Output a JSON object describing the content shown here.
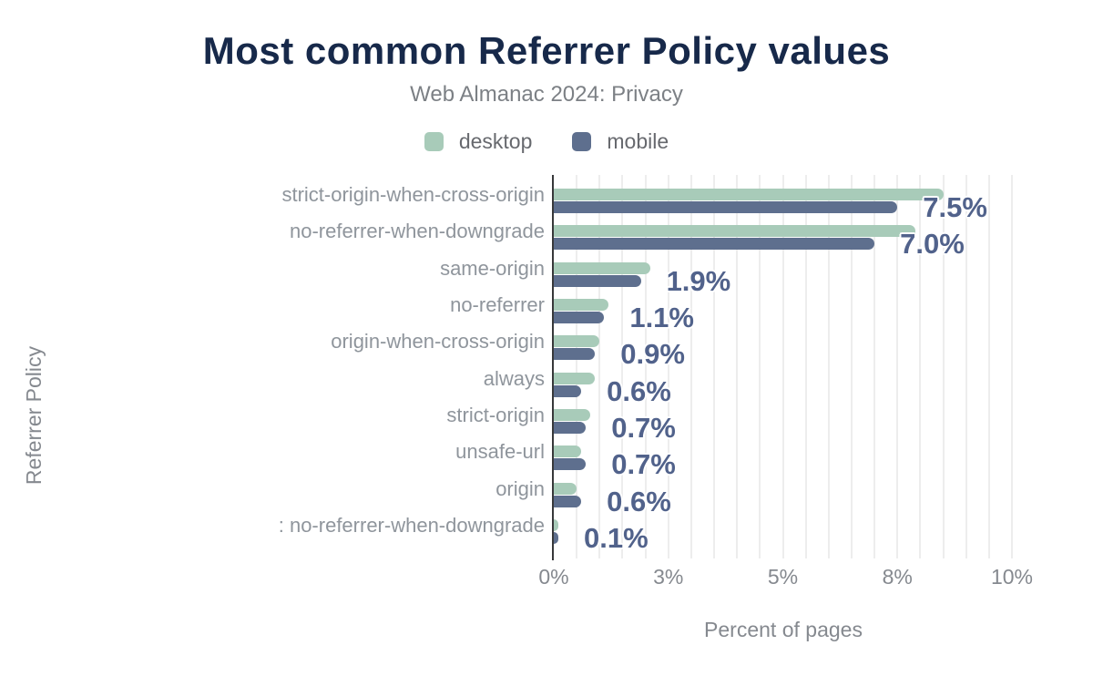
{
  "title": "Most common Referrer Policy values",
  "subtitle": "Web Almanac 2024: Privacy",
  "legend": {
    "items": [
      {
        "label": "desktop",
        "color": "#a8cbb9"
      },
      {
        "label": "mobile",
        "color": "#5e6f8e"
      }
    ]
  },
  "x_axis": {
    "title": "Percent of pages",
    "ticks": [
      {
        "label": "0%",
        "value": 0
      },
      {
        "label": "3%",
        "value": 2.5
      },
      {
        "label": "5%",
        "value": 5
      },
      {
        "label": "8%",
        "value": 7.5
      },
      {
        "label": "10%",
        "value": 10
      }
    ]
  },
  "y_axis": {
    "title": "Referrer Policy"
  },
  "chart_data": {
    "type": "bar",
    "orientation": "horizontal",
    "title": "Most common Referrer Policy values",
    "subtitle": "Web Almanac 2024: Privacy",
    "xlabel": "Percent of pages",
    "ylabel": "Referrer Policy",
    "xlim": [
      0,
      10
    ],
    "grid_step": 0.5,
    "grid": true,
    "legend_position": "top",
    "categories": [
      "strict-origin-when-cross-origin",
      "no-referrer-when-downgrade",
      "same-origin",
      "no-referrer",
      "origin-when-cross-origin",
      "always",
      "strict-origin",
      "unsafe-url",
      "origin",
      ": no-referrer-when-downgrade"
    ],
    "series": [
      {
        "name": "desktop",
        "color": "#a8cbb9",
        "values": [
          8.5,
          7.9,
          2.1,
          1.2,
          1.0,
          0.9,
          0.8,
          0.6,
          0.5,
          0.1
        ]
      },
      {
        "name": "mobile",
        "color": "#5e6f8e",
        "values": [
          7.5,
          7.0,
          1.9,
          1.1,
          0.9,
          0.6,
          0.7,
          0.7,
          0.6,
          0.1
        ]
      }
    ],
    "value_labels": [
      "7.5%",
      "7.0%",
      "1.9%",
      "1.1%",
      "0.9%",
      "0.6%",
      "0.7%",
      "0.7%",
      "0.6%",
      "0.1%"
    ],
    "value_labels_source": "mobile"
  },
  "colors": {
    "title": "#17294a",
    "subtitle": "#7c8085",
    "legend_text": "#67696e",
    "category_label": "#8f959c",
    "tick_label": "#85898f",
    "axis_title": "#85898f",
    "value_label": "#51628b",
    "gridline": "#ededed",
    "axis_line": "#37383a",
    "background": "#ffffff"
  }
}
